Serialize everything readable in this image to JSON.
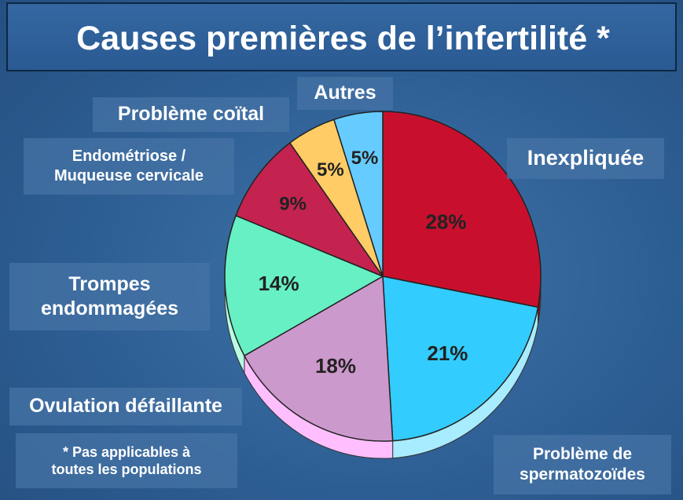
{
  "title": "Causes premières de l’infertilité *",
  "footnote": [
    "* Pas applicables à",
    "toutes les populations"
  ],
  "chart_data": {
    "type": "pie",
    "title": "Causes premières de l’infertilité *",
    "slices": [
      {
        "label": "Inexpliquée",
        "lines": [
          "Inexpliquée"
        ],
        "value": 28,
        "value_label": "28%",
        "color": "#c8102e",
        "side": "#8e0b20"
      },
      {
        "label": "Problème de spermatozoïdes",
        "lines": [
          "Problème de",
          "spermatozoïdes"
        ],
        "value": 21,
        "value_label": "21%",
        "color": "#33ccff",
        "side": "#a8ecff"
      },
      {
        "label": "Ovulation défaillante",
        "lines": [
          "Ovulation défaillante"
        ],
        "value": 18,
        "value_label": "18%",
        "color": "#cc99cc",
        "side": "#ffbfff"
      },
      {
        "label": "Trompes endommagées",
        "lines": [
          "Trompes",
          "endommagées"
        ],
        "value": 14,
        "value_label": "14%",
        "color": "#66f0c4",
        "side": "#b8fbe3"
      },
      {
        "label": "Endométriose / Muqueuse cervicale",
        "lines": [
          "Endométriose /",
          "Muqueuse cervicale"
        ],
        "value": 9,
        "value_label": "9%",
        "color": "#c4234f",
        "side": "#8a1838"
      },
      {
        "label": "Problème coïtal",
        "lines": [
          "Problème coïtal"
        ],
        "value": 5,
        "value_label": "5%",
        "color": "#ffcc66",
        "side": "#d9a640"
      },
      {
        "label": "Autres",
        "lines": [
          "Autres"
        ],
        "value": 5,
        "value_label": "5%",
        "color": "#66ccff",
        "side": "#3d9fd6"
      }
    ]
  }
}
